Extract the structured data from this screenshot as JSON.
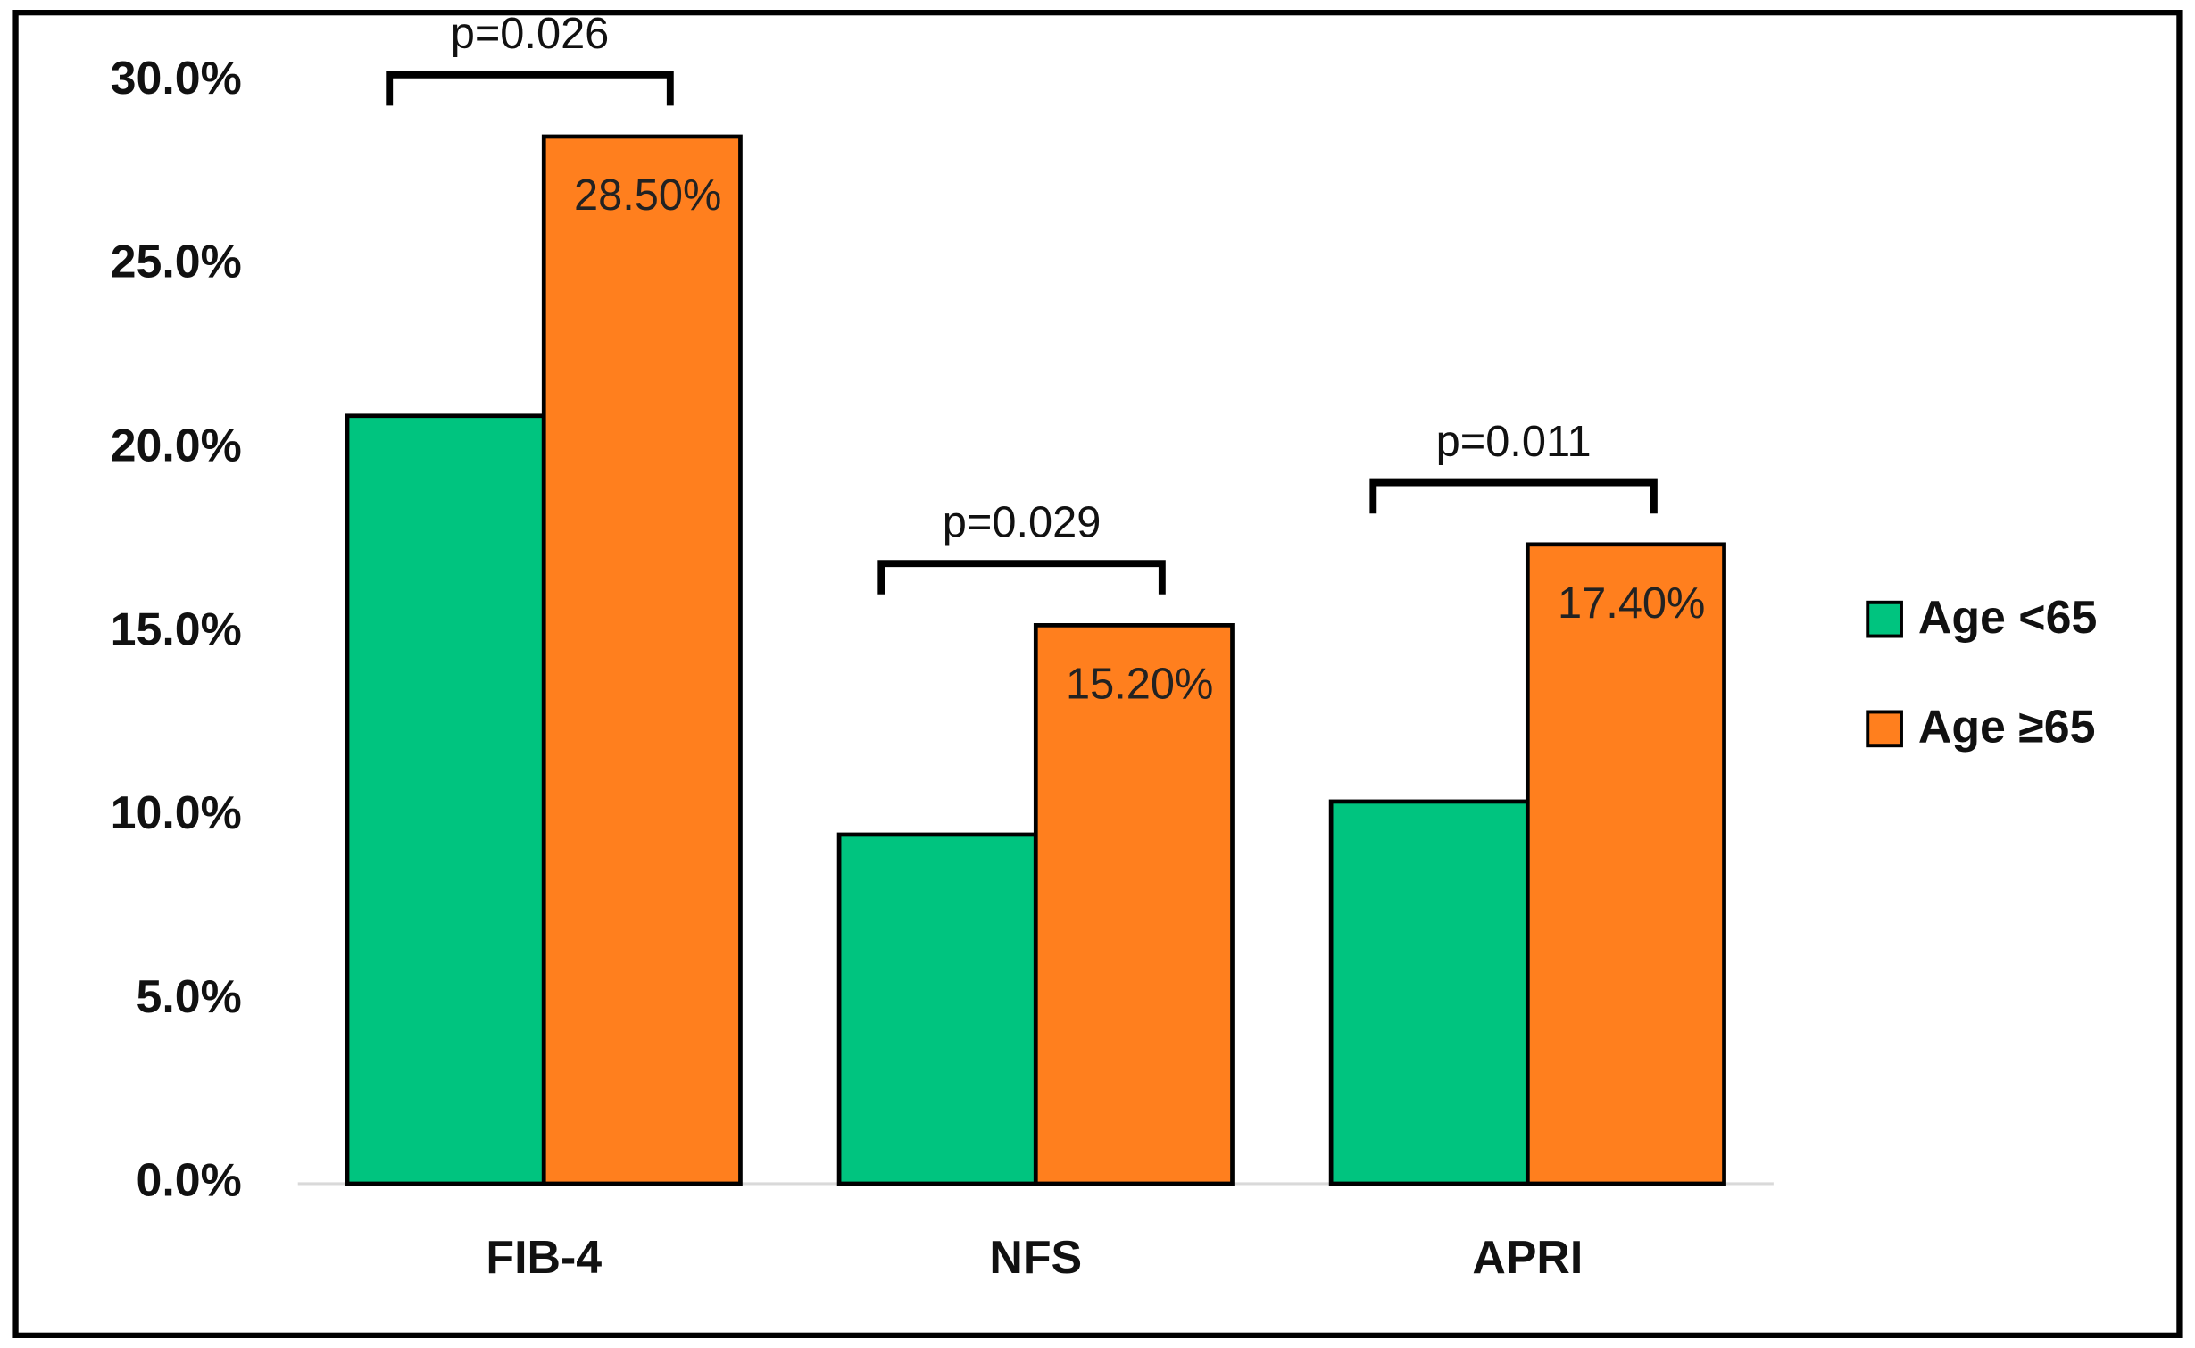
{
  "chart_data": {
    "type": "bar",
    "categories": [
      "FIB-4",
      "NFS",
      "APRI"
    ],
    "series": [
      {
        "name": "Age <65",
        "color": "#00c47f",
        "values": [
          20.9,
          9.5,
          10.4
        ]
      },
      {
        "name": "Age ≥65",
        "color": "#ff7f1e",
        "values": [
          28.5,
          15.2,
          17.4
        ],
        "value_labels": [
          "28.50%",
          "15.20%",
          "17.40%"
        ]
      }
    ],
    "annotations": [
      "p=0.026",
      "p=0.029",
      "p=0.011"
    ],
    "ylim": [
      0,
      30
    ],
    "yticks": [
      {
        "value": 0,
        "label": "0.0%"
      },
      {
        "value": 5,
        "label": "5.0%"
      },
      {
        "value": 10,
        "label": "10.0%"
      },
      {
        "value": 15,
        "label": "15.0%"
      },
      {
        "value": 20,
        "label": "20.0%"
      },
      {
        "value": 25,
        "label": "25.0%"
      },
      {
        "value": 30,
        "label": "30.0%"
      }
    ],
    "grid": false,
    "legend": "right"
  }
}
